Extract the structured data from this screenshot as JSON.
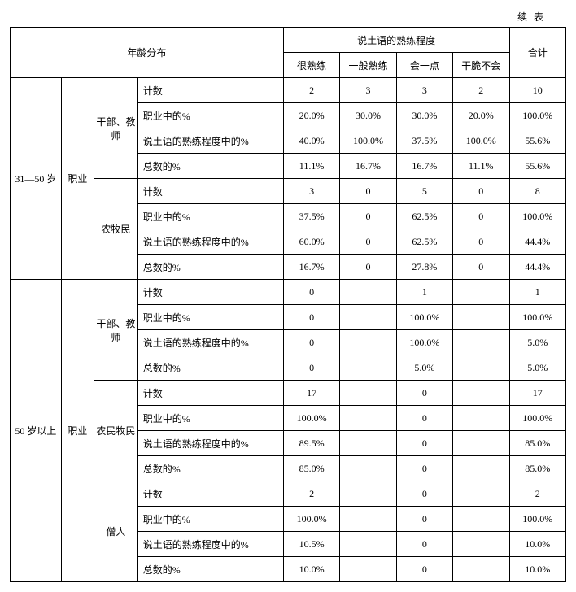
{
  "continued_label": "续表",
  "headers": {
    "age_dist": "年龄分布",
    "proficiency_group": "说土语的熟练程度",
    "total": "合计",
    "levels": [
      "很熟练",
      "一般熟练",
      "会一点",
      "干脆不会"
    ]
  },
  "metrics": {
    "count": "计数",
    "pct_in_occ": "职业中的%",
    "pct_in_prof": "说土语的熟练程度中的%",
    "pct_total": "总数的%"
  },
  "age_groups": [
    {
      "label": "31—50 岁",
      "occ_group_label": "职业",
      "occupations": [
        {
          "label": "干部、教师",
          "rows": [
            {
              "m": "count",
              "v": [
                "2",
                "3",
                "3",
                "2",
                "10"
              ]
            },
            {
              "m": "pct_in_occ",
              "v": [
                "20.0%",
                "30.0%",
                "30.0%",
                "20.0%",
                "100.0%"
              ]
            },
            {
              "m": "pct_in_prof",
              "v": [
                "40.0%",
                "100.0%",
                "37.5%",
                "100.0%",
                "55.6%"
              ]
            },
            {
              "m": "pct_total",
              "v": [
                "11.1%",
                "16.7%",
                "16.7%",
                "11.1%",
                "55.6%"
              ]
            }
          ]
        },
        {
          "label": "农牧民",
          "rows": [
            {
              "m": "count",
              "v": [
                "3",
                "0",
                "5",
                "0",
                "8"
              ]
            },
            {
              "m": "pct_in_occ",
              "v": [
                "37.5%",
                "0",
                "62.5%",
                "0",
                "100.0%"
              ]
            },
            {
              "m": "pct_in_prof",
              "v": [
                "60.0%",
                "0",
                "62.5%",
                "0",
                "44.4%"
              ]
            },
            {
              "m": "pct_total",
              "v": [
                "16.7%",
                "0",
                "27.8%",
                "0",
                "44.4%"
              ]
            }
          ]
        }
      ]
    },
    {
      "label": "50 岁以上",
      "occ_group_label": "职业",
      "occupations": [
        {
          "label": "干部、教师",
          "rows": [
            {
              "m": "count",
              "v": [
                "0",
                "",
                "1",
                "",
                "1"
              ]
            },
            {
              "m": "pct_in_occ",
              "v": [
                "0",
                "",
                "100.0%",
                "",
                "100.0%"
              ]
            },
            {
              "m": "pct_in_prof",
              "v": [
                "0",
                "",
                "100.0%",
                "",
                "5.0%"
              ]
            },
            {
              "m": "pct_total",
              "v": [
                "0",
                "",
                "5.0%",
                "",
                "5.0%"
              ]
            }
          ]
        },
        {
          "label": "农民牧民",
          "rows": [
            {
              "m": "count",
              "v": [
                "17",
                "",
                "0",
                "",
                "17"
              ]
            },
            {
              "m": "pct_in_occ",
              "v": [
                "100.0%",
                "",
                "0",
                "",
                "100.0%"
              ]
            },
            {
              "m": "pct_in_prof",
              "v": [
                "89.5%",
                "",
                "0",
                "",
                "85.0%"
              ]
            },
            {
              "m": "pct_total",
              "v": [
                "85.0%",
                "",
                "0",
                "",
                "85.0%"
              ]
            }
          ]
        },
        {
          "label": "僧人",
          "rows": [
            {
              "m": "count",
              "v": [
                "2",
                "",
                "0",
                "",
                "2"
              ]
            },
            {
              "m": "pct_in_occ",
              "v": [
                "100.0%",
                "",
                "0",
                "",
                "100.0%"
              ]
            },
            {
              "m": "pct_in_prof",
              "v": [
                "10.5%",
                "",
                "0",
                "",
                "10.0%"
              ]
            },
            {
              "m": "pct_total",
              "v": [
                "10.0%",
                "",
                "0",
                "",
                "10.0%"
              ]
            }
          ]
        }
      ]
    }
  ]
}
